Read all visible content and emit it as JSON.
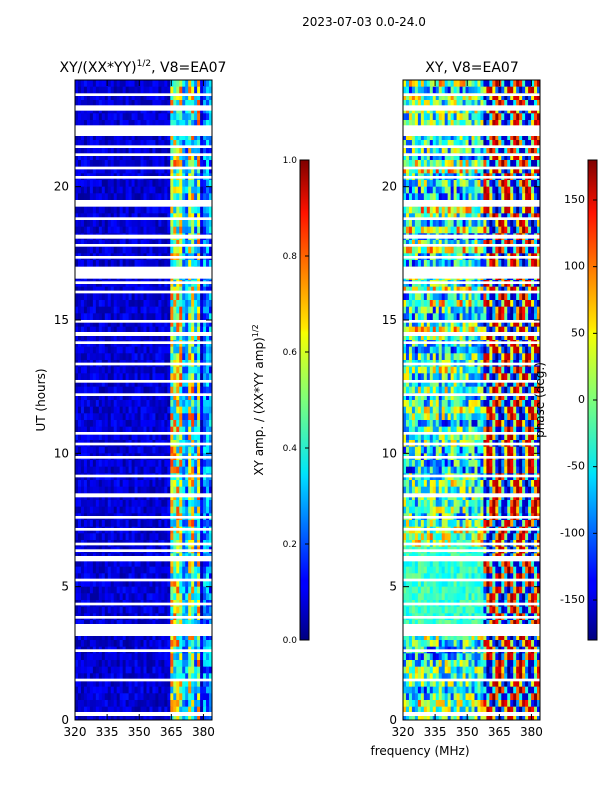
{
  "figure_title": "2023-07-03 0.0-24.0",
  "shared_xlabel": "frequency (MHz)",
  "chart_data": [
    {
      "type": "heatmap",
      "title": "XY/(XX*YY)^1/2, V8=EA07",
      "title_main": "XY/(XX*YY)",
      "title_exp": "1/2",
      "title_tail": ", V8=EA07",
      "xlabel": "frequency (MHz)",
      "ylabel": "UT (hours)",
      "xlim": [
        320,
        384
      ],
      "ylim": [
        0,
        24
      ],
      "xticks": [
        320,
        335,
        350,
        365,
        380
      ],
      "yticks": [
        0,
        5,
        10,
        15,
        20
      ],
      "colorbar": {
        "label": "XY amp. / (XX*YY amp)^1/2",
        "label_main": "XY amp. / (XX*YY amp)",
        "label_exp": "1/2",
        "range": [
          0.0,
          1.0
        ],
        "ticks": [
          "0.0",
          "0.2",
          "0.4",
          "0.6",
          "0.8",
          "1.0"
        ],
        "tick_values": [
          0.0,
          0.2,
          0.4,
          0.6,
          0.8,
          1.0
        ],
        "colormap": "jet"
      },
      "bright_bands_mhz": [
        [
          364,
          367
        ],
        [
          367.5,
          370
        ],
        [
          373,
          375
        ],
        [
          377,
          379
        ]
      ],
      "typical_value_background": 0.05,
      "typical_value_bands": 0.45
    },
    {
      "type": "heatmap",
      "title": "XY, V8=EA07",
      "ylabel": "",
      "xlim": [
        320,
        384
      ],
      "ylim": [
        0,
        24
      ],
      "xticks": [
        320,
        335,
        350,
        365,
        380
      ],
      "yticks": [
        0,
        5,
        10,
        15,
        20
      ],
      "colorbar": {
        "label": "phase (deg.)",
        "range": [
          -180,
          180
        ],
        "ticks": [
          "-150",
          "-100",
          "-50",
          "0",
          "50",
          "100",
          "150"
        ],
        "tick_values": [
          -150,
          -100,
          -50,
          0,
          50,
          100,
          150
        ],
        "colormap": "jet"
      }
    }
  ],
  "data_gaps_ut_hours": [
    [
      0.15,
      0.3
    ],
    [
      1.45,
      1.55
    ],
    [
      2.55,
      2.65
    ],
    [
      3.15,
      3.6
    ],
    [
      3.8,
      3.9
    ],
    [
      4.3,
      4.4
    ],
    [
      5.2,
      5.3
    ],
    [
      5.95,
      6.15
    ],
    [
      6.3,
      6.4
    ],
    [
      6.55,
      6.65
    ],
    [
      7.1,
      7.2
    ],
    [
      7.55,
      7.65
    ],
    [
      8.35,
      8.5
    ],
    [
      9.1,
      9.2
    ],
    [
      9.8,
      9.9
    ],
    [
      10.3,
      10.4
    ],
    [
      10.7,
      10.8
    ],
    [
      12.15,
      12.25
    ],
    [
      12.65,
      12.75
    ],
    [
      13.3,
      13.4
    ],
    [
      14.1,
      14.2
    ],
    [
      14.4,
      14.55
    ],
    [
      14.9,
      15.0
    ],
    [
      16.0,
      16.1
    ],
    [
      16.35,
      16.45
    ],
    [
      16.55,
      17.0
    ],
    [
      17.3,
      17.4
    ],
    [
      17.75,
      17.85
    ],
    [
      18.05,
      18.2
    ],
    [
      18.75,
      18.85
    ],
    [
      19.25,
      19.5
    ],
    [
      20.3,
      20.4
    ],
    [
      20.65,
      20.75
    ],
    [
      21.15,
      21.25
    ],
    [
      21.45,
      21.55
    ],
    [
      21.9,
      22.3
    ],
    [
      22.85,
      23.05
    ],
    [
      23.4,
      23.5
    ]
  ]
}
